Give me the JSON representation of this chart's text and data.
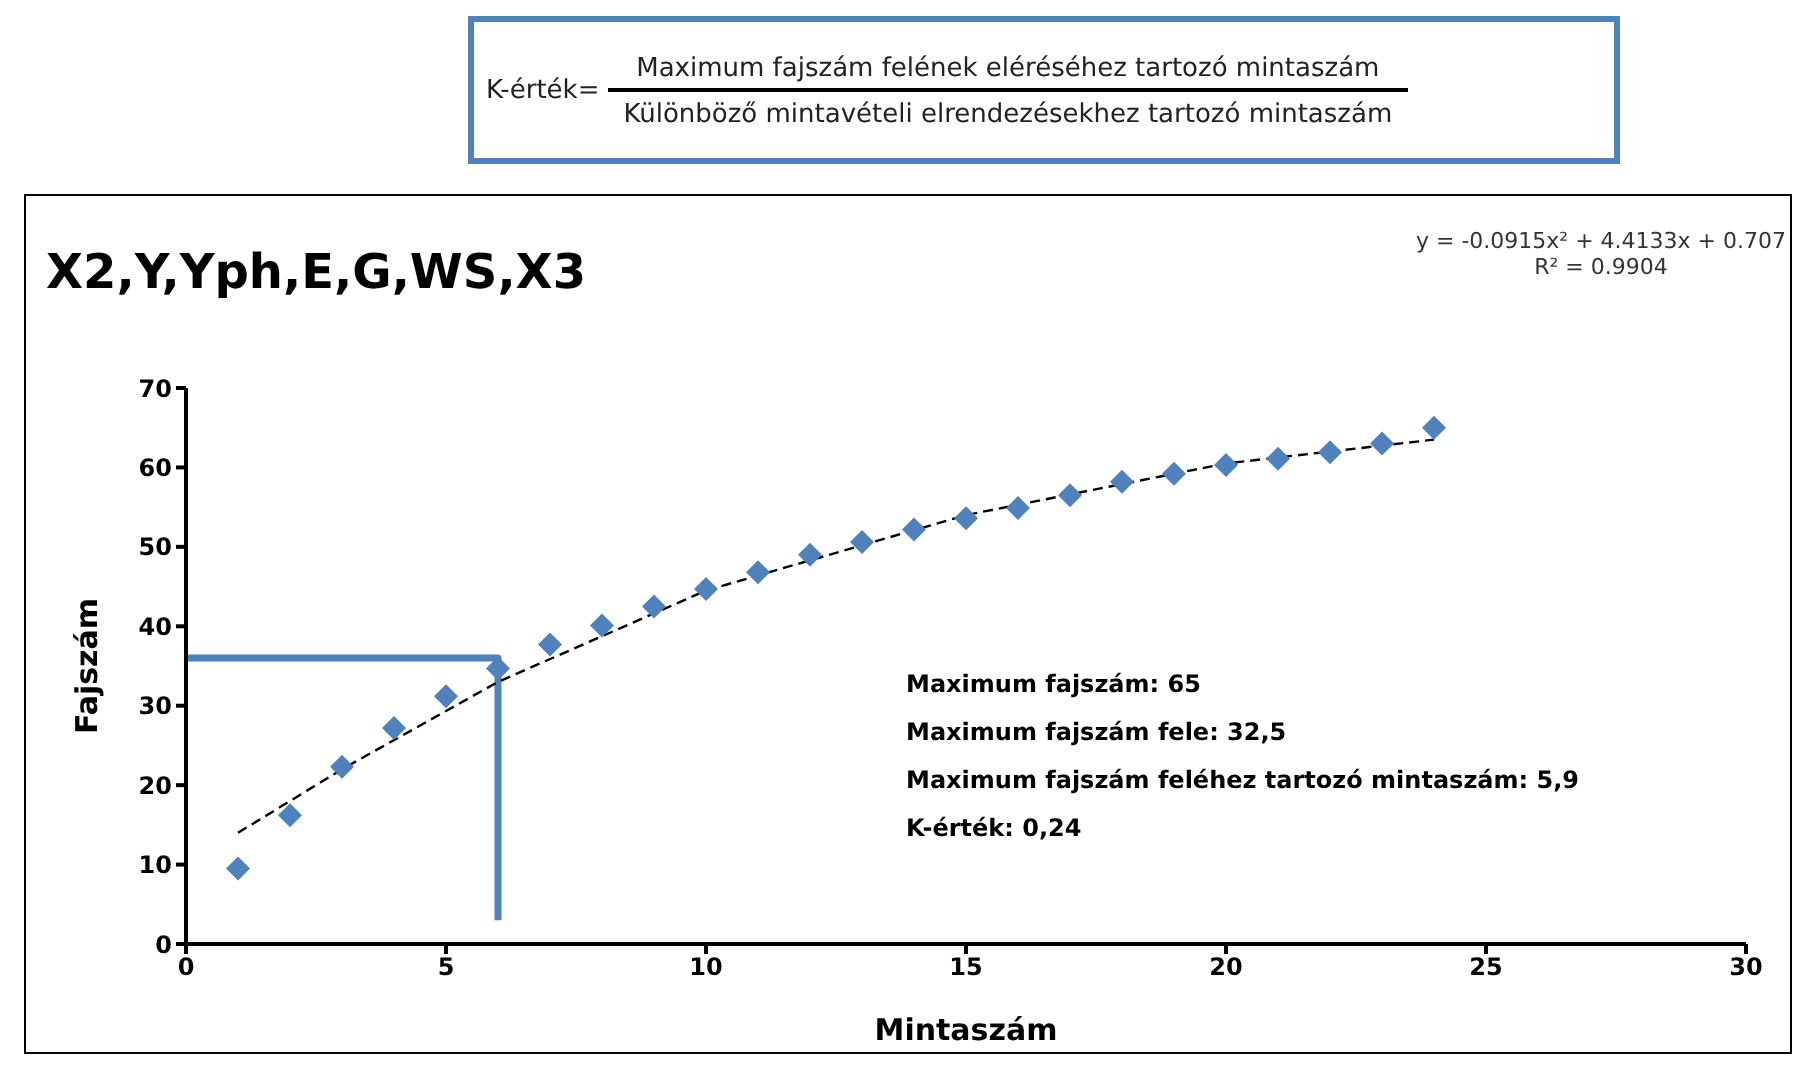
{
  "chart_data": {
    "type": "scatter",
    "title": "X2,Y,Yph,E,G,WS,X3",
    "xlabel": "Mintaszám",
    "ylabel": "Fajszám",
    "annotations": [
      "K-érték=",
      "Maximum fajszám felének eléréséhez tartozó mintaszám",
      "Különböző mintavételi elrendezésekhez tartozó mintaszám",
      "y = -0.0915x² + 4.4133x + 0.707",
      "R² = 0.9904",
      "Maximum fajszám: 65",
      "Maximum fajszám fele: 32,5",
      "Maximum fajszám feléhez tartozó mintaszám: 5,9",
      "K-érték: 0,24"
    ],
    "xlim": [
      0,
      30
    ],
    "xticks": [
      0,
      5,
      10,
      15,
      20,
      25,
      30
    ],
    "ylim": [
      0,
      70
    ],
    "yticks": [
      0,
      10,
      20,
      30,
      40,
      50,
      60,
      70
    ],
    "grid": false,
    "legend": false,
    "series": [
      {
        "type": "line",
        "color": "#4f81bd",
        "line_style": "solid",
        "x": [
          0,
          6,
          6
        ],
        "values": [
          36,
          36,
          3
        ]
      },
      {
        "type": "line",
        "color": "#000000",
        "line_style": "dashed",
        "x": [
          1,
          3,
          6,
          10,
          15,
          20,
          24
        ],
        "values": [
          14,
          22,
          33,
          44.5,
          54,
          60.5,
          63.5
        ]
      },
      {
        "color": "#4f81bd",
        "marker": "diamond",
        "x": [
          1,
          2,
          3,
          4,
          5,
          6,
          7,
          8,
          9,
          10,
          11,
          12,
          13,
          14,
          15,
          16,
          17,
          18,
          19,
          20,
          21,
          22,
          23,
          24
        ],
        "values": [
          9.5,
          16.2,
          22.3,
          27.2,
          31.2,
          34.7,
          37.7,
          40.1,
          42.5,
          44.7,
          46.8,
          49,
          50.6,
          52.2,
          53.6,
          54.9,
          56.5,
          58.2,
          59.2,
          60.3,
          61.1,
          61.9,
          63,
          65
        ]
      }
    ]
  }
}
